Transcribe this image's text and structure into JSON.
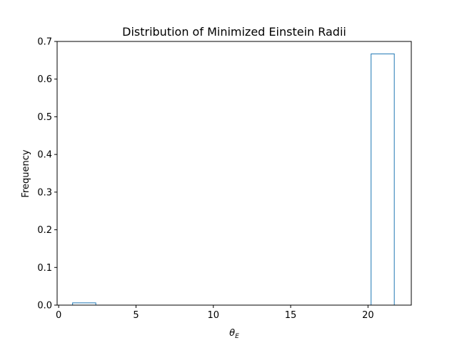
{
  "chart_data": {
    "type": "bar",
    "title": "Distribution of Minimized Einstein Radii",
    "xlabel_symbol": "θ",
    "xlabel_subscript": "E",
    "ylabel": "Frequency",
    "xlim": [
      -0.1,
      22.8
    ],
    "ylim": [
      0,
      0.7
    ],
    "x_ticks": [
      0,
      5,
      10,
      15,
      20
    ],
    "y_ticks": [
      0.0,
      0.1,
      0.2,
      0.3,
      0.4,
      0.5,
      0.6,
      0.7
    ],
    "bars": [
      {
        "x0": 0.9,
        "x1": 2.4,
        "value": 0.006
      },
      {
        "x0": 20.2,
        "x1": 21.7,
        "value": 0.667
      }
    ],
    "grid": false,
    "histtype": "step",
    "bar_color": "#1f77b4"
  }
}
